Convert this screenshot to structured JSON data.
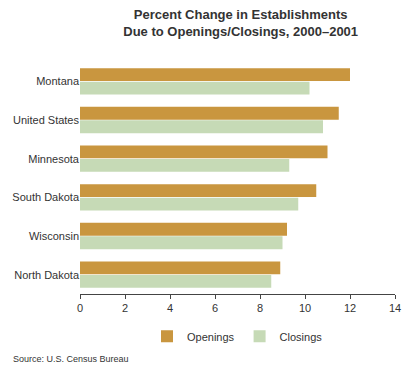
{
  "chart_data": {
    "type": "bar",
    "orientation": "horizontal",
    "title": "Percent Change in Establishments\nDue to Openings/Closings, 2000–2001",
    "source": "Source: U.S. Census Bureau",
    "categories": [
      "Montana",
      "United States",
      "Minnesota",
      "South Dakota",
      "Wisconsin",
      "North Dakota"
    ],
    "series": [
      {
        "name": "Openings",
        "color": "#c9963f",
        "values": [
          12.0,
          11.5,
          11.0,
          10.5,
          9.2,
          8.9
        ]
      },
      {
        "name": "Closings",
        "color": "#c6dab6",
        "values": [
          10.2,
          10.8,
          9.3,
          9.7,
          9.0,
          8.5
        ]
      }
    ],
    "xlim": [
      0,
      14
    ],
    "xticks": [
      0,
      2,
      4,
      6,
      8,
      10,
      12,
      14
    ],
    "grid": false,
    "legend": "bottom"
  }
}
